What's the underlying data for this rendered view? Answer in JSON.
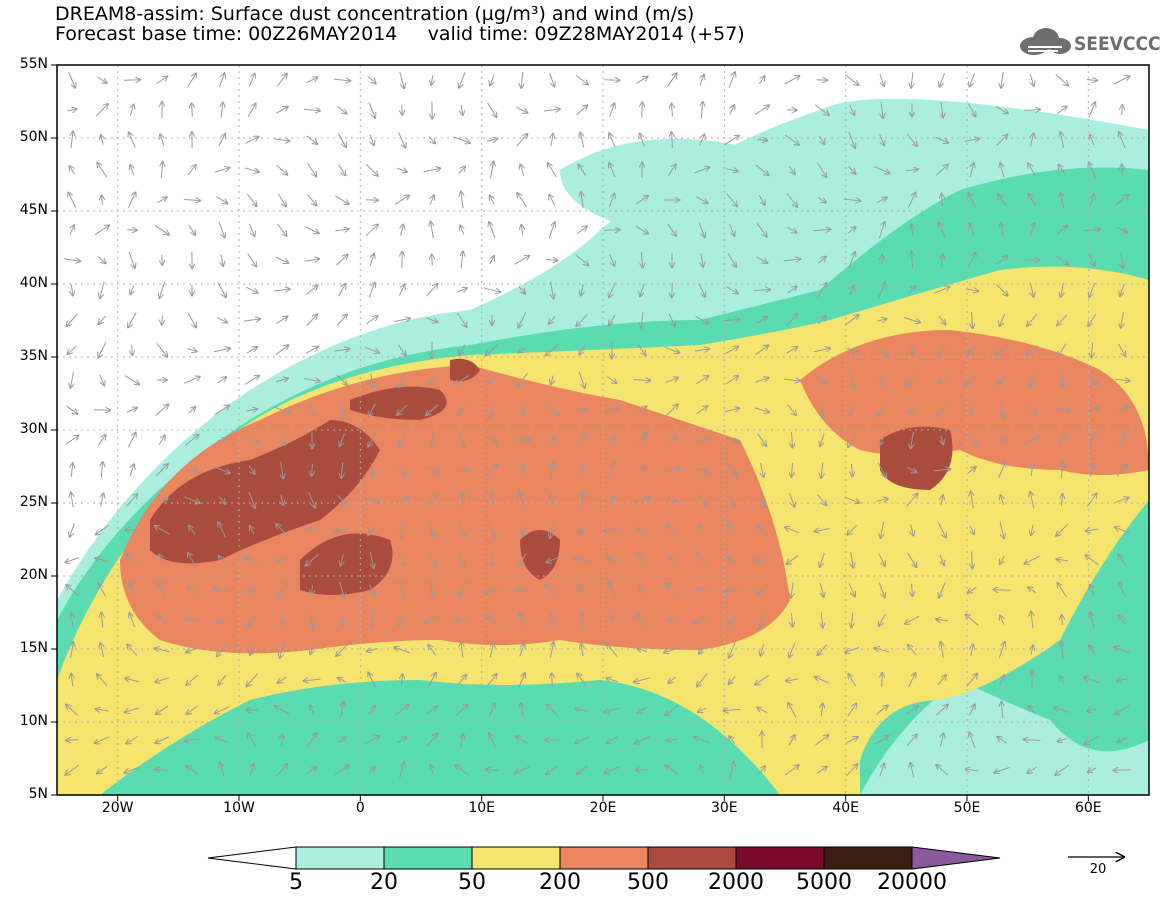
{
  "title": {
    "line1": "DREAM8-assim: Surface dust concentration (µg/m³) and wind (m/s)",
    "line2": "Forecast base time: 00Z26MAY2014     valid time: 09Z28MAY2014 (+57)"
  },
  "logo": {
    "text": "SEEVCCC",
    "icon": "cloud-icon"
  },
  "axes": {
    "lat_labels": [
      "55N",
      "50N",
      "45N",
      "40N",
      "35N",
      "30N",
      "25N",
      "20N",
      "15N",
      "10N",
      "5N"
    ],
    "lon_labels": [
      "20W",
      "10W",
      "0",
      "10E",
      "20E",
      "30E",
      "40E",
      "50E",
      "60E"
    ],
    "lat_range": [
      5,
      55
    ],
    "lon_range": [
      -25,
      65
    ]
  },
  "colorbar": {
    "labels": [
      "5",
      "20",
      "50",
      "200",
      "500",
      "2000",
      "5000",
      "20000"
    ],
    "colors": [
      "#ffffff",
      "#aaeee0",
      "#5adcb0",
      "#f5e46e",
      "#e9855f",
      "#a94b3d",
      "#7a0a2a",
      "#3b1f12",
      "#8a5a9e"
    ]
  },
  "wind_reference": {
    "value": "20"
  }
}
